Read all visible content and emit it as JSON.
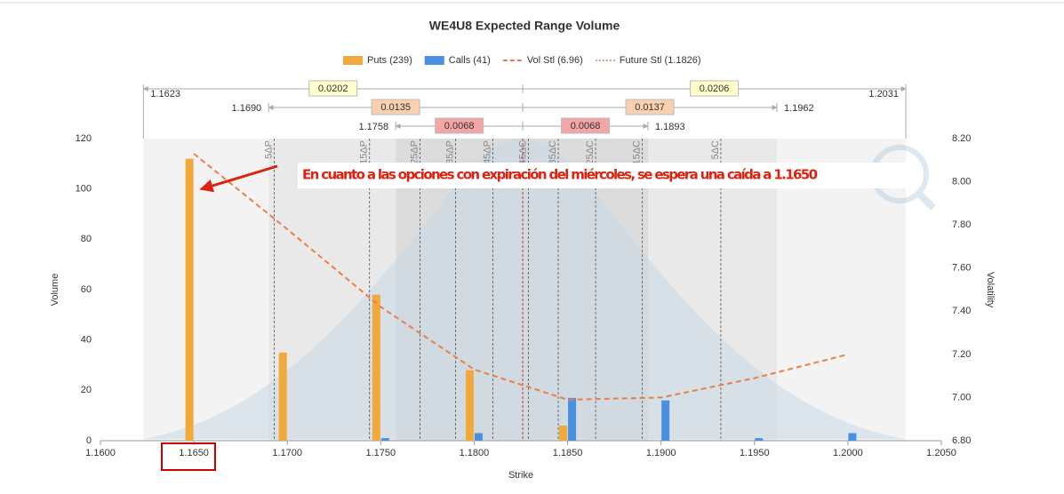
{
  "chart_data": {
    "type": "bar",
    "title": "WE4U8 Expected Range Volume",
    "x_label": "Strike",
    "y_label": "Volume",
    "y2_label": "Volatility",
    "xlim": [
      1.16,
      1.205
    ],
    "xticks": [
      {
        "value": 1.16,
        "label": "1.1600"
      },
      {
        "value": 1.165,
        "label": "1.1650"
      },
      {
        "value": 1.17,
        "label": "1.1700"
      },
      {
        "value": 1.175,
        "label": "1.1750"
      },
      {
        "value": 1.18,
        "label": "1.1800"
      },
      {
        "value": 1.185,
        "label": "1.1850"
      },
      {
        "value": 1.19,
        "label": "1.1900"
      },
      {
        "value": 1.195,
        "label": "1.1950"
      },
      {
        "value": 1.2,
        "label": "1.2000"
      },
      {
        "value": 1.205,
        "label": "1.2050"
      }
    ],
    "ylim": [
      0,
      120
    ],
    "yticks": [
      0,
      20,
      40,
      60,
      80,
      100,
      120
    ],
    "y2lim": [
      6.8,
      8.2
    ],
    "y2ticks": [
      {
        "value": 6.8,
        "label": "6.80"
      },
      {
        "value": 7.0,
        "label": "7.00"
      },
      {
        "value": 7.2,
        "label": "7.20"
      },
      {
        "value": 7.4,
        "label": "7.40"
      },
      {
        "value": 7.6,
        "label": "7.60"
      },
      {
        "value": 7.8,
        "label": "7.80"
      },
      {
        "value": 8.0,
        "label": "8.00"
      },
      {
        "value": 8.2,
        "label": "8.20"
      }
    ],
    "x": [
      1.165,
      1.17,
      1.175,
      1.18,
      1.185,
      1.19,
      1.195,
      1.2
    ],
    "series": [
      {
        "name": "Puts (239)",
        "type": "bar",
        "color": "#f2a93b",
        "values": [
          112,
          35,
          58,
          28,
          6,
          null,
          null,
          null
        ]
      },
      {
        "name": "Calls (41)",
        "type": "bar",
        "color": "#4a8fe0",
        "values": [
          null,
          null,
          1,
          3,
          17,
          16,
          1,
          3
        ]
      },
      {
        "name": "Vol Stl (6.96)",
        "type": "line",
        "axis": "y2",
        "color": "#e8804a",
        "values": [
          8.13,
          7.78,
          7.42,
          7.13,
          6.99,
          7.0,
          7.09,
          7.2
        ]
      }
    ],
    "future_stl": {
      "name": "Future Stl (1.1826)",
      "value": 1.1826,
      "color": "#d0302a"
    },
    "deltas": [
      {
        "label": "5ΔP",
        "x": 1.1693
      },
      {
        "label": "15ΔP",
        "x": 1.1744
      },
      {
        "label": "25ΔP",
        "x": 1.1771
      },
      {
        "label": "35ΔP",
        "x": 1.179
      },
      {
        "label": "45ΔP",
        "x": 1.181
      },
      {
        "label": "45ΔC",
        "x": 1.1829
      },
      {
        "label": "35ΔC",
        "x": 1.1845
      },
      {
        "label": "25ΔC",
        "x": 1.1865
      },
      {
        "label": "15ΔC",
        "x": 1.189
      },
      {
        "label": "5ΔC",
        "x": 1.1932
      }
    ],
    "ranges": [
      {
        "low": {
          "value": 1.1623,
          "label": "1.1623"
        },
        "high": {
          "value": 1.2031,
          "label": "1.2031"
        },
        "down": "0.0202",
        "up": "0.0206",
        "color": "#ffffcc",
        "band": "#f3f3f3"
      },
      {
        "low": {
          "value": 1.169,
          "label": "1.1690"
        },
        "high": {
          "value": 1.1962,
          "label": "1.1962"
        },
        "down": "0.0135",
        "up": "0.0137",
        "color": "#f9d0b0",
        "band": "#e9e9e9"
      },
      {
        "low": {
          "value": 1.1758,
          "label": "1.1758"
        },
        "high": {
          "value": 1.1893,
          "label": "1.1893"
        },
        "down": "0.0068",
        "up": "0.0068",
        "color": "#f4a6a6",
        "band": "#dcdcdc"
      }
    ],
    "annotation": "En cuanto a las opciones con expiración del miércoles, se espera una caída a 1.1650"
  }
}
